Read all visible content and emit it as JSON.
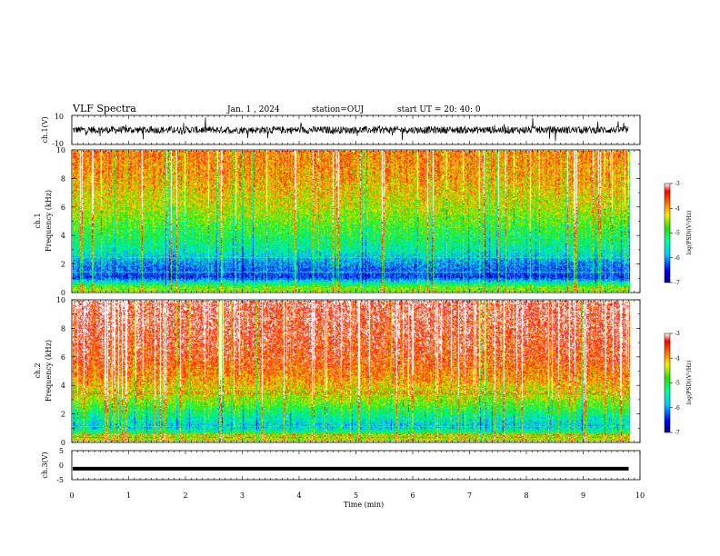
{
  "header": {
    "title": "VLF Spectra",
    "date": "Jan. 1 , 2024",
    "station": "station=OUJ",
    "start_ut": "start UT = 20: 40: 0"
  },
  "chart_data": [
    {
      "type": "line",
      "panel": "ch1-waveform",
      "ylabel": "ch.1(V)",
      "ylim": [
        -10,
        10
      ],
      "yticks": [
        "10",
        "-10"
      ],
      "xlim": [
        0,
        10
      ],
      "series": [
        {
          "values_note_level": 0,
          "noise_amplitude": 2.5
        }
      ],
      "color": "#000000"
    },
    {
      "type": "heatmap",
      "panel": "ch1-spectrogram",
      "ylabel_top": "ch.1",
      "ylabel": "Frequency (kHz)",
      "ylim": [
        0,
        10
      ],
      "yticks": [
        "0",
        "2",
        "4",
        "6",
        "8",
        "10"
      ],
      "xlim": [
        0,
        9.8
      ],
      "colorbar": {
        "title": "log(PSD)(V²/Hz)",
        "range": [
          -7,
          -3
        ],
        "ticks": [
          "-3",
          "-4",
          "-5",
          "-6",
          "-7"
        ]
      },
      "frequency_profile": [
        {
          "f_kHz": 0.25,
          "log_psd": -4.6
        },
        {
          "f_kHz": 1.0,
          "log_psd": -6.4
        },
        {
          "f_kHz": 2.0,
          "log_psd": -6.0
        },
        {
          "f_kHz": 3.0,
          "log_psd": -5.4
        },
        {
          "f_kHz": 4.5,
          "log_psd": -4.9
        },
        {
          "f_kHz": 6.0,
          "log_psd": -4.4
        },
        {
          "f_kHz": 8.0,
          "log_psd": -4.0
        },
        {
          "f_kHz": 10.0,
          "log_psd": -3.8
        }
      ]
    },
    {
      "type": "heatmap",
      "panel": "ch2-spectrogram",
      "ylabel_top": "ch.2",
      "ylabel": "Frequency (kHz)",
      "ylim": [
        0,
        10
      ],
      "yticks": [
        "0",
        "2",
        "4",
        "6",
        "8",
        "10"
      ],
      "xlim": [
        0,
        9.8
      ],
      "colorbar": {
        "title": "log(PSD)(V²/Hz)",
        "range": [
          -7,
          -3
        ],
        "ticks": [
          "-3",
          "-4",
          "-5",
          "-6",
          "-7"
        ]
      },
      "frequency_profile": [
        {
          "f_kHz": 0.25,
          "log_psd": -4.4
        },
        {
          "f_kHz": 1.0,
          "log_psd": -5.8
        },
        {
          "f_kHz": 2.0,
          "log_psd": -5.2
        },
        {
          "f_kHz": 3.0,
          "log_psd": -4.5
        },
        {
          "f_kHz": 4.5,
          "log_psd": -3.9
        },
        {
          "f_kHz": 6.0,
          "log_psd": -3.5
        },
        {
          "f_kHz": 8.0,
          "log_psd": -3.3
        },
        {
          "f_kHz": 10.0,
          "log_psd": -3.2
        }
      ]
    },
    {
      "type": "line",
      "panel": "ch3-waveform",
      "ylabel": "ch.3(V)",
      "ylim": [
        -5,
        5
      ],
      "yticks": [
        "5",
        "0",
        "-5"
      ],
      "xlim": [
        0,
        10
      ],
      "series": [
        {
          "level": -1.2,
          "values_note_constant": true
        }
      ],
      "color": "#000000"
    }
  ],
  "xaxis": {
    "label": "Time (min)",
    "ticks": [
      "0",
      "1",
      "2",
      "3",
      "4",
      "5",
      "6",
      "7",
      "8",
      "9",
      "10"
    ],
    "xlim": [
      0,
      10
    ]
  }
}
